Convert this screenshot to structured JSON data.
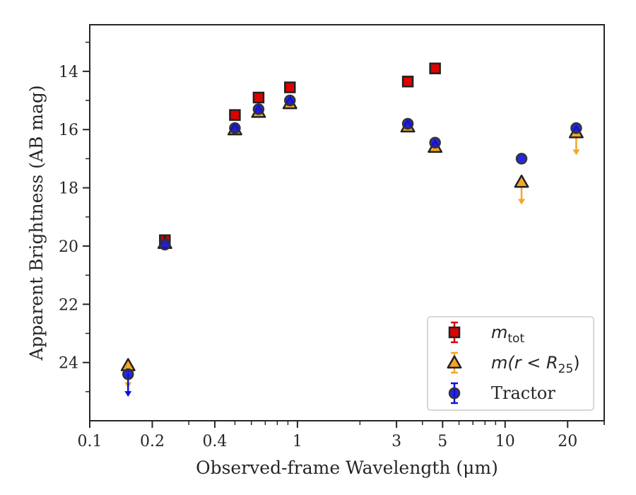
{
  "chart_data": {
    "type": "scatter",
    "xlabel": "Observed-frame Wavelength (μm)",
    "ylabel": "Apparent Brightness (AB mag)",
    "x_scale": "log",
    "xlim": [
      0.1,
      30
    ],
    "ylim": [
      26.0,
      12.4
    ],
    "y_inverted": true,
    "x_ticks": [
      0.1,
      0.2,
      0.4,
      1,
      3,
      5,
      10,
      20
    ],
    "x_tick_labels": [
      "0.1",
      "0.2",
      "0.4",
      "1",
      "3",
      "5",
      "10",
      "20"
    ],
    "y_ticks": [
      14,
      16,
      18,
      20,
      22,
      24
    ],
    "y_tick_labels": [
      "14",
      "16",
      "18",
      "20",
      "22",
      "24"
    ],
    "grid": false,
    "legend_position": "lower-right",
    "series": [
      {
        "key": "mtot",
        "name": "m_tot",
        "marker": "square",
        "color": "#e00000",
        "edge_color": "#222222",
        "error_color": "#e00000",
        "points": [
          {
            "x": 0.23,
            "y": 19.8
          },
          {
            "x": 0.5,
            "y": 15.5
          },
          {
            "x": 0.65,
            "y": 14.9
          },
          {
            "x": 0.92,
            "y": 14.55
          },
          {
            "x": 3.4,
            "y": 14.35
          },
          {
            "x": 4.6,
            "y": 13.9
          }
        ]
      },
      {
        "key": "mr25",
        "name": "m(r < R25)",
        "marker": "triangle",
        "color": "#f5a623",
        "edge_color": "#222222",
        "error_color": "#f5a623",
        "points": [
          {
            "x": 0.153,
            "y": 24.1,
            "upper_limit": true
          },
          {
            "x": 0.23,
            "y": 19.9
          },
          {
            "x": 0.5,
            "y": 16.0
          },
          {
            "x": 0.65,
            "y": 15.4
          },
          {
            "x": 0.92,
            "y": 15.1
          },
          {
            "x": 3.4,
            "y": 15.9
          },
          {
            "x": 4.6,
            "y": 16.6
          },
          {
            "x": 12.0,
            "y": 17.8,
            "upper_limit": true
          },
          {
            "x": 22.0,
            "y": 16.1,
            "upper_limit": true
          }
        ]
      },
      {
        "key": "tractor",
        "name": "Tractor",
        "marker": "circle",
        "color": "#1010dd",
        "edge_color": "#333333",
        "error_color": "#1010dd",
        "points": [
          {
            "x": 0.153,
            "y": 24.4,
            "upper_limit": true
          },
          {
            "x": 0.23,
            "y": 19.95
          },
          {
            "x": 0.5,
            "y": 15.95
          },
          {
            "x": 0.65,
            "y": 15.3
          },
          {
            "x": 0.92,
            "y": 15.0
          },
          {
            "x": 3.4,
            "y": 15.8
          },
          {
            "x": 4.6,
            "y": 16.45
          },
          {
            "x": 12.0,
            "y": 17.0
          },
          {
            "x": 22.0,
            "y": 15.95
          }
        ]
      }
    ],
    "legend": [
      {
        "series": "mtot",
        "label_main": "m",
        "label_sub": "tot",
        "label_tail": ""
      },
      {
        "series": "mr25",
        "label_main": "m(r < R",
        "label_sub": "25",
        "label_tail": ")"
      },
      {
        "series": "tractor",
        "label_main": "Tractor",
        "label_sub": "",
        "label_tail": ""
      }
    ]
  }
}
